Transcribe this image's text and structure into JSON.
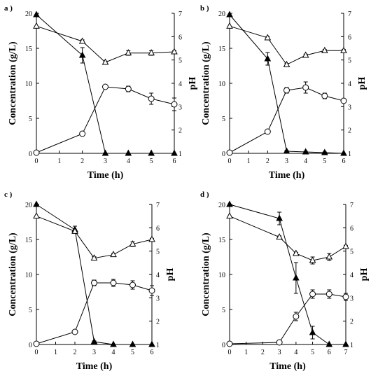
{
  "figure": {
    "background": "#ffffff",
    "ink": "#000000"
  },
  "chart_data": [
    {
      "type": "line",
      "panel_label": "a )",
      "xlabel": "Time (h)",
      "ylabel_left": "Concentration (g/L)",
      "ylabel_right": "pH",
      "xlim": [
        0,
        6
      ],
      "ylim_left": [
        0,
        20
      ],
      "ylim_right": [
        1,
        7
      ],
      "x_ticks": [
        0,
        1,
        2,
        3,
        4,
        5,
        6
      ],
      "y_ticks_left": [
        0,
        5,
        10,
        15,
        20
      ],
      "y_ticks_right": [
        1,
        2,
        3,
        4,
        5,
        6,
        7
      ],
      "grid": false,
      "series": [
        {
          "marker": "filled-triangle",
          "axis": "left",
          "x": [
            0,
            2,
            3,
            4,
            5,
            6
          ],
          "y": [
            19.8,
            14.0,
            0.0,
            0.0,
            0.0,
            0.0
          ],
          "err": [
            0,
            1.1,
            0,
            0,
            0,
            0
          ]
        },
        {
          "marker": "open-circle",
          "axis": "left",
          "x": [
            0,
            2,
            3,
            4,
            5,
            6
          ],
          "y": [
            0.1,
            2.8,
            9.5,
            9.2,
            7.8,
            7.0
          ],
          "err": [
            0,
            0.3,
            0.2,
            0.4,
            0.8,
            0.9
          ]
        },
        {
          "marker": "open-triangle",
          "axis": "right",
          "x": [
            0,
            2,
            3,
            4,
            5,
            6
          ],
          "y": [
            6.45,
            5.8,
            4.9,
            5.3,
            5.3,
            5.35
          ],
          "err": [
            0,
            0.06,
            0.05,
            0.1,
            0.1,
            0.05
          ]
        }
      ]
    },
    {
      "type": "line",
      "panel_label": "b )",
      "xlabel": "Time (h)",
      "ylabel_left": "Concentration (g/L)",
      "ylabel_right": "pH",
      "xlim": [
        0,
        6
      ],
      "ylim_left": [
        0,
        20
      ],
      "ylim_right": [
        1,
        7
      ],
      "x_ticks": [
        0,
        1,
        2,
        3,
        4,
        5,
        6
      ],
      "y_ticks_left": [
        0,
        5,
        10,
        15,
        20
      ],
      "y_ticks_right": [
        1,
        2,
        3,
        4,
        5,
        6,
        7
      ],
      "grid": false,
      "series": [
        {
          "marker": "filled-triangle",
          "axis": "left",
          "x": [
            0,
            2,
            3,
            4,
            5,
            6
          ],
          "y": [
            19.8,
            13.5,
            0.3,
            0.2,
            0.1,
            0.0
          ],
          "err": [
            0,
            0.9,
            0.1,
            0.1,
            0.1,
            0
          ]
        },
        {
          "marker": "open-circle",
          "axis": "left",
          "x": [
            0,
            2,
            3,
            4,
            5,
            6
          ],
          "y": [
            0.1,
            3.1,
            9.0,
            9.4,
            8.2,
            7.5
          ],
          "err": [
            0,
            0.2,
            0.4,
            0.8,
            0.4,
            0.2
          ]
        },
        {
          "marker": "open-triangle",
          "axis": "right",
          "x": [
            0,
            2,
            3,
            4,
            5,
            6
          ],
          "y": [
            6.45,
            5.95,
            4.8,
            5.2,
            5.4,
            5.4
          ],
          "err": [
            0,
            0.05,
            0.05,
            0.05,
            0.05,
            0.05
          ]
        }
      ]
    },
    {
      "type": "line",
      "panel_label": "c )",
      "xlabel": "Time (h)",
      "ylabel_left": "Concentration (g/L)",
      "ylabel_right": "pH",
      "xlim": [
        0,
        6
      ],
      "ylim_left": [
        0,
        20
      ],
      "ylim_right": [
        1,
        7
      ],
      "x_ticks": [
        0,
        1,
        2,
        3,
        4,
        5,
        6
      ],
      "y_ticks_left": [
        0,
        5,
        10,
        15,
        20
      ],
      "y_ticks_right": [
        1,
        2,
        3,
        4,
        5,
        6,
        7
      ],
      "grid": false,
      "series": [
        {
          "marker": "filled-triangle",
          "axis": "left",
          "x": [
            0,
            2,
            3,
            4,
            5,
            6
          ],
          "y": [
            20.0,
            16.4,
            0.4,
            0.0,
            0.0,
            0.0
          ],
          "err": [
            0,
            0.5,
            0.1,
            0,
            0,
            0
          ]
        },
        {
          "marker": "open-circle",
          "axis": "left",
          "x": [
            0,
            2,
            3,
            4,
            5,
            6
          ],
          "y": [
            0.1,
            1.8,
            8.8,
            8.8,
            8.5,
            7.7
          ],
          "err": [
            0,
            0.2,
            0.4,
            0.5,
            0.6,
            0.7
          ]
        },
        {
          "marker": "open-triangle",
          "axis": "right",
          "x": [
            0,
            2,
            3,
            4,
            5,
            6
          ],
          "y": [
            6.5,
            5.85,
            4.7,
            4.85,
            5.3,
            5.5
          ],
          "err": [
            0,
            0.06,
            0.06,
            0.05,
            0.1,
            0.05
          ]
        }
      ]
    },
    {
      "type": "line",
      "panel_label": "d )",
      "xlabel": "Time (h)",
      "ylabel_left": "Concentration (g/L)",
      "ylabel_right": "pH",
      "xlim": [
        0,
        7
      ],
      "ylim_left": [
        0,
        20
      ],
      "ylim_right": [
        1,
        7
      ],
      "x_ticks": [
        0,
        1,
        2,
        3,
        4,
        5,
        6,
        7
      ],
      "y_ticks_left": [
        0,
        5,
        10,
        15,
        20
      ],
      "y_ticks_right": [
        1,
        2,
        3,
        4,
        5,
        6,
        7
      ],
      "grid": false,
      "series": [
        {
          "marker": "filled-triangle",
          "axis": "left",
          "x": [
            0,
            3,
            4,
            5,
            6,
            7
          ],
          "y": [
            20.0,
            18.0,
            9.5,
            1.7,
            0.0,
            0.0
          ],
          "err": [
            0,
            0.9,
            2.2,
            0.9,
            0,
            0
          ]
        },
        {
          "marker": "open-circle",
          "axis": "left",
          "x": [
            0,
            3,
            4,
            5,
            6,
            7
          ],
          "y": [
            0.1,
            0.3,
            4.0,
            7.2,
            7.2,
            6.8
          ],
          "err": [
            0,
            0,
            0.6,
            0.6,
            0.6,
            0.5
          ]
        },
        {
          "marker": "open-triangle",
          "axis": "right",
          "x": [
            0,
            3,
            4,
            5,
            6,
            7
          ],
          "y": [
            6.5,
            5.6,
            4.9,
            4.6,
            4.75,
            5.2
          ],
          "err": [
            0,
            0.05,
            0.05,
            0.15,
            0.15,
            0.05
          ]
        }
      ]
    }
  ]
}
